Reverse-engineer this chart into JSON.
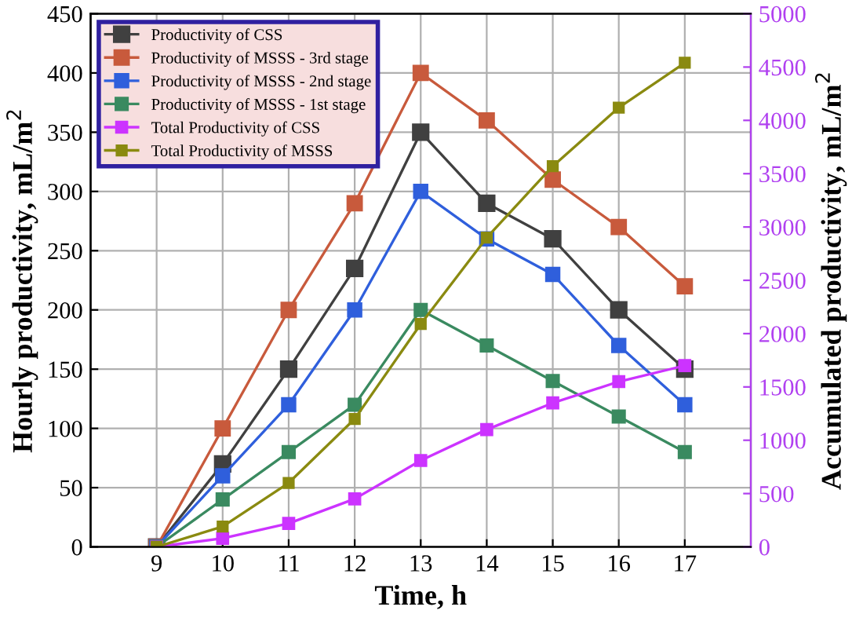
{
  "chart_data": {
    "type": "line",
    "xlabel": "Time, h",
    "ylabel": "Hourly productivity, mL/m$^{2}$",
    "y2label": "Accumulated productivity, mL/m$^{2}$",
    "x": [
      9,
      10,
      11,
      12,
      13,
      14,
      15,
      16,
      17
    ],
    "series": [
      {
        "name": "Productivity of CSS",
        "color": "#404040",
        "values": [
          0,
          70,
          150,
          235,
          350,
          290,
          260,
          200,
          150
        ]
      },
      {
        "name": "Productivity of MSSS - 3rd stage",
        "color": "#c85a3c",
        "values": [
          0,
          100,
          200,
          290,
          400,
          360,
          310,
          270,
          220
        ]
      },
      {
        "name": "Productivity of MSSS - 2nd stage",
        "color": "#2f5fdc",
        "values": [
          0,
          60,
          120,
          200,
          300,
          260,
          230,
          170,
          120
        ]
      },
      {
        "name": "Productivity of MSSS - 1st stage",
        "color": "#3a8a60",
        "values": [
          0,
          40,
          80,
          120,
          200,
          170,
          140,
          110,
          80
        ]
      },
      {
        "name": "Total Productivity of CSS",
        "color": "#cc33ff",
        "axis": "y2",
        "values": [
          0,
          80,
          220,
          450,
          810,
          1100,
          1350,
          1550,
          1700
        ]
      },
      {
        "name": "Total Productivity of MSSS",
        "color": "#8a8a10",
        "axis": "y2",
        "values": [
          0,
          190,
          600,
          1200,
          2090,
          2900,
          3570,
          4120,
          4540
        ]
      }
    ],
    "xlim": [
      8,
      18
    ],
    "xticks": [
      9,
      10,
      11,
      12,
      13,
      14,
      15,
      16,
      17
    ],
    "ylim": [
      0,
      450
    ],
    "yticks": [
      0,
      50,
      100,
      150,
      200,
      250,
      300,
      350,
      400,
      450
    ],
    "y2lim": [
      0,
      5000
    ],
    "y2ticks": [
      0,
      500,
      1000,
      1500,
      2000,
      2500,
      3000,
      3500,
      4000,
      4500,
      5000
    ],
    "grid": true,
    "legend": "top left",
    "marker": "square",
    "line_style": "solid"
  }
}
